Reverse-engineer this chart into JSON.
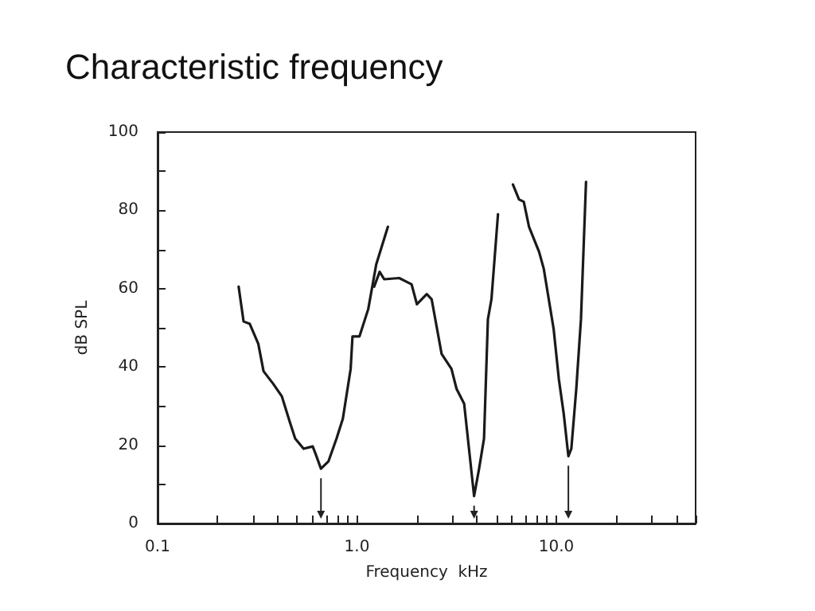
{
  "chart_data": {
    "type": "line",
    "title": "Characteristic frequency",
    "xlabel": "Frequency  kHz",
    "ylabel": "dB SPL",
    "log": "x",
    "xlim": [
      0.1,
      50
    ],
    "ylim": [
      0,
      100
    ],
    "xticks": [
      {
        "value": 0.1,
        "label": "0.1"
      },
      {
        "value": 0.2,
        "label": null
      },
      {
        "value": 0.3,
        "label": null
      },
      {
        "value": 0.4,
        "label": null
      },
      {
        "value": 0.5,
        "label": null
      },
      {
        "value": 0.6,
        "label": null
      },
      {
        "value": 0.7,
        "label": null
      },
      {
        "value": 0.8,
        "label": null
      },
      {
        "value": 0.9,
        "label": null
      },
      {
        "value": 1,
        "label": "1.0"
      },
      {
        "value": 2,
        "label": null
      },
      {
        "value": 3,
        "label": null
      },
      {
        "value": 4,
        "label": null
      },
      {
        "value": 5,
        "label": null
      },
      {
        "value": 6,
        "label": null
      },
      {
        "value": 7,
        "label": null
      },
      {
        "value": 8,
        "label": null
      },
      {
        "value": 9,
        "label": null
      },
      {
        "value": 10,
        "label": "10.0"
      },
      {
        "value": 20,
        "label": null
      },
      {
        "value": 30,
        "label": null
      },
      {
        "value": 40,
        "label": null
      },
      {
        "value": 50,
        "label": null
      }
    ],
    "yticks": [
      0,
      {
        "value": 10,
        "label": null
      },
      20,
      {
        "value": 30,
        "label": null
      },
      40,
      {
        "value": 50,
        "label": null
      },
      60,
      {
        "value": 70,
        "label": null
      },
      80,
      {
        "value": 90,
        "label": null
      },
      100
    ],
    "grid": false,
    "marker": "none",
    "line_style": "solid",
    "series": [
      {
        "color": "#1a1a1a",
        "x": [
          0.255,
          0.27,
          0.29,
          0.32,
          0.34,
          0.38,
          0.42,
          0.46,
          0.49,
          0.54,
          0.6,
          0.62,
          0.66,
          0.72,
          0.79,
          0.85,
          0.93,
          0.95,
          1.03,
          1.14,
          1.25,
          1.43
        ],
        "values": [
          60.5,
          51.6,
          51,
          45.9,
          38.9,
          35.7,
          32.5,
          26,
          21.7,
          19.1,
          19.7,
          17.8,
          14,
          15.9,
          21.7,
          26.8,
          39.5,
          47.8,
          47.8,
          54.8,
          66.2,
          75.8
        ]
      },
      {
        "color": "#1a1a1a",
        "x": [
          1.22,
          1.3,
          1.37,
          1.63,
          1.88,
          2.0,
          2.24,
          2.37,
          2.66,
          2.98,
          3.16,
          3.45,
          3.87,
          4.1,
          4.34,
          4.54,
          4.73,
          5.1
        ],
        "values": [
          60.5,
          64.3,
          62.4,
          62.7,
          61.1,
          56,
          58.6,
          57.3,
          43.3,
          39.5,
          34.4,
          30.6,
          7,
          14,
          21.7,
          52.2,
          57.3,
          79
        ]
      },
      {
        "color": "#1a1a1a",
        "x": [
          6.06,
          6.5,
          6.87,
          7.3,
          8.2,
          8.66,
          9.7,
          10.3,
          10.9,
          11.5,
          11.9,
          12.6,
          13.3,
          14.1
        ],
        "values": [
          86.6,
          82.8,
          82.2,
          75.8,
          69.4,
          65,
          49.7,
          36.9,
          28,
          17.2,
          19.1,
          34.4,
          52.2,
          87.3
        ]
      }
    ]
  }
}
